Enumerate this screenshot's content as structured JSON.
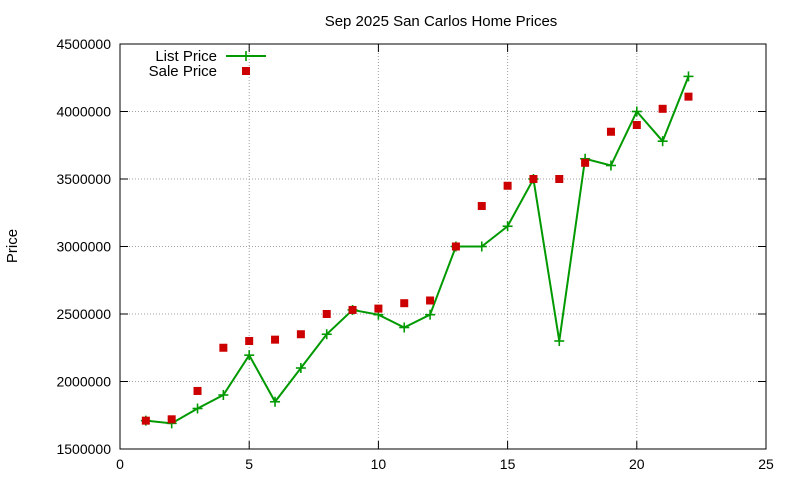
{
  "chart_data": {
    "type": "line",
    "title": "Sep 2025 San Carlos Home Prices",
    "xlabel": "",
    "ylabel": "Price",
    "xlim": [
      0,
      25
    ],
    "ylim": [
      1500000,
      4500000
    ],
    "xticks": [
      "0",
      "5",
      "10",
      "15",
      "20",
      "25"
    ],
    "yticks": [
      "1500000",
      "2000000",
      "2500000",
      "3000000",
      "3500000",
      "4000000",
      "4500000"
    ],
    "grid": true,
    "legend_position": "top-left",
    "series": [
      {
        "name": "List Price",
        "style": "line-plus",
        "color": "#009900",
        "x": [
          1,
          2,
          3,
          4,
          5,
          6,
          7,
          8,
          9,
          10,
          11,
          12,
          13,
          14,
          15,
          16,
          17,
          18,
          19,
          20,
          21,
          22
        ],
        "y": [
          1710000,
          1690000,
          1800000,
          1900000,
          2195000,
          1850000,
          2100000,
          2350000,
          2530000,
          2495000,
          2400000,
          2495000,
          3000000,
          3000000,
          3150000,
          3500000,
          2300000,
          3650000,
          3600000,
          4000000,
          3780000,
          4260000
        ]
      },
      {
        "name": "Sale Price",
        "style": "square",
        "color": "#cc0000",
        "x": [
          1,
          2,
          3,
          4,
          5,
          6,
          7,
          8,
          9,
          10,
          11,
          12,
          13,
          14,
          15,
          16,
          17,
          18,
          19,
          20,
          21,
          22
        ],
        "y": [
          1710000,
          1720000,
          1930000,
          2250000,
          2300000,
          2310000,
          2350000,
          2500000,
          2530000,
          2540000,
          2580000,
          2600000,
          3000000,
          3300000,
          3450000,
          3500000,
          3500000,
          3620000,
          3850000,
          3900000,
          4020000,
          4110000
        ]
      }
    ]
  }
}
